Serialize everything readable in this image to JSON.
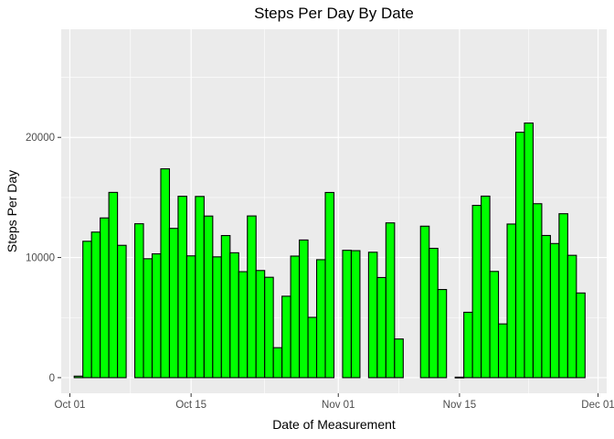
{
  "chart_data": {
    "type": "bar",
    "title": "Steps Per Day By Date",
    "xlabel": "Date of Measurement",
    "ylabel": "Steps Per Day",
    "x_ticks": [
      "Oct 01",
      "Oct 15",
      "Nov 01",
      "Nov 15",
      "Dec 01"
    ],
    "x_tick_dates": [
      "2012-10-01",
      "2012-10-15",
      "2012-11-01",
      "2012-11-15",
      "2012-12-01"
    ],
    "y_ticks": [
      0,
      10000,
      20000
    ],
    "y_tick_labels": [
      "0",
      "10000",
      "20000"
    ],
    "xlim": [
      "2012-09-30",
      "2012-12-02"
    ],
    "ylim": [
      -1300,
      29000
    ],
    "grid": true,
    "bar_fill": "#00ff00",
    "bar_outline": "#000000",
    "panel_background": "#ebebeb",
    "grid_color": "#ffffff",
    "categories": [
      "2012-10-02",
      "2012-10-03",
      "2012-10-04",
      "2012-10-05",
      "2012-10-06",
      "2012-10-07",
      "2012-10-09",
      "2012-10-10",
      "2012-10-11",
      "2012-10-12",
      "2012-10-13",
      "2012-10-14",
      "2012-10-15",
      "2012-10-16",
      "2012-10-17",
      "2012-10-18",
      "2012-10-19",
      "2012-10-20",
      "2012-10-21",
      "2012-10-22",
      "2012-10-23",
      "2012-10-24",
      "2012-10-25",
      "2012-10-26",
      "2012-10-27",
      "2012-10-28",
      "2012-10-29",
      "2012-10-30",
      "2012-10-31",
      "2012-11-02",
      "2012-11-03",
      "2012-11-05",
      "2012-11-06",
      "2012-11-07",
      "2012-11-08",
      "2012-11-11",
      "2012-11-12",
      "2012-11-13",
      "2012-11-15",
      "2012-11-16",
      "2012-11-17",
      "2012-11-18",
      "2012-11-19",
      "2012-11-20",
      "2012-11-21",
      "2012-11-22",
      "2012-11-23",
      "2012-11-24",
      "2012-11-25",
      "2012-11-26",
      "2012-11-27",
      "2012-11-28",
      "2012-11-29"
    ],
    "values": [
      126,
      11352,
      12116,
      13294,
      15420,
      11015,
      12811,
      9900,
      10304,
      17382,
      12426,
      15098,
      10139,
      15084,
      13452,
      10056,
      11829,
      10395,
      8821,
      13460,
      8918,
      8355,
      2492,
      6778,
      10119,
      11458,
      5018,
      9819,
      15414,
      10600,
      10571,
      10439,
      8334,
      12883,
      3219,
      12608,
      10765,
      7336,
      41,
      5441,
      14339,
      15110,
      8841,
      4472,
      12787,
      20427,
      21194,
      14478,
      11834,
      11162,
      13646,
      10183,
      7047
    ]
  }
}
